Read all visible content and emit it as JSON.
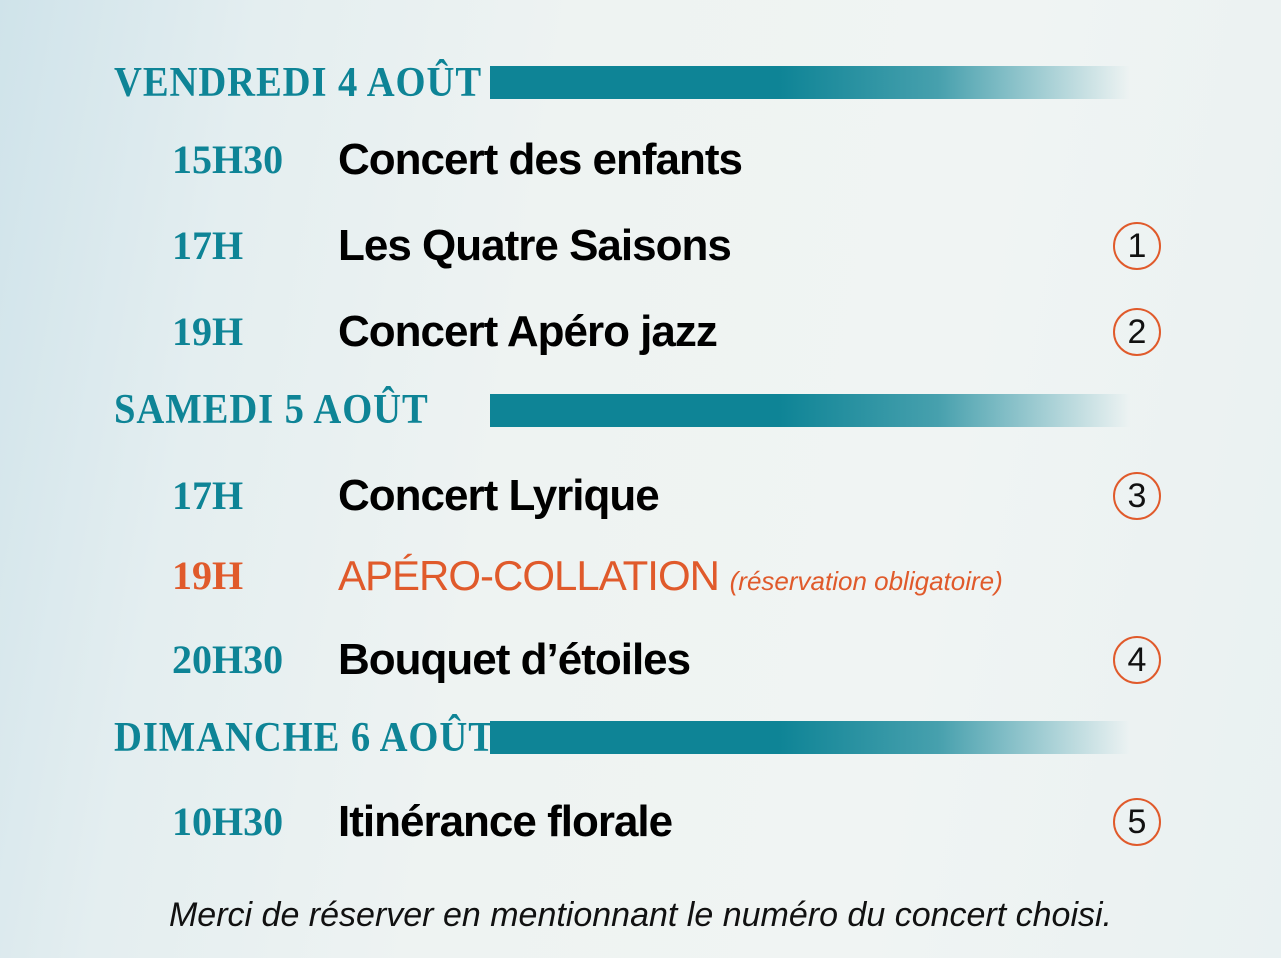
{
  "colors": {
    "accent": "#0e8496",
    "highlight": "#e05a2b",
    "text": "#000000"
  },
  "days": [
    {
      "label": "Vendredi 4 août",
      "events": [
        {
          "time": "15H30",
          "title": "Concert des enfants",
          "number": ""
        },
        {
          "time": "17H",
          "title": "Les Quatre Saisons",
          "number": "1"
        },
        {
          "time": "19H",
          "title": "Concert Apéro jazz",
          "number": "2"
        }
      ]
    },
    {
      "label": "Samedi 5 août",
      "events": [
        {
          "time": "17H",
          "title": "Concert Lyrique",
          "number": "3"
        },
        {
          "time": "19H",
          "title": "APÉRO-COLLATION",
          "note": "(réservation obligatoire)",
          "number": ""
        },
        {
          "time": "20H30",
          "title": "Bouquet d’étoiles",
          "number": "4"
        }
      ]
    },
    {
      "label": "Dimanche 6 août",
      "events": [
        {
          "time": "10H30",
          "title": "Itinérance florale",
          "number": "5"
        }
      ]
    }
  ],
  "footer": "Merci de réserver en mentionnant le numéro du concert choisi."
}
